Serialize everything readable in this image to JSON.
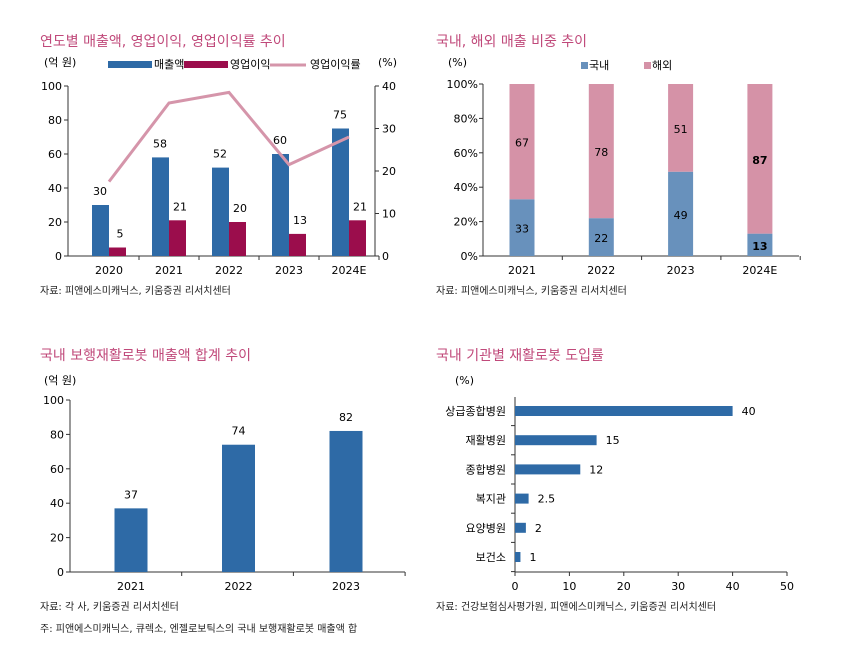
{
  "chart_data": [
    {
      "type": "bar+line",
      "title": "연도별 매출액, 영업이익, 영업이익률 추이",
      "ylabel": "(억 원)",
      "y2label": "(%)",
      "categories": [
        "2020",
        "2021",
        "2022",
        "2023",
        "2024E"
      ],
      "ylim": [
        0,
        100
      ],
      "y2lim": [
        0,
        40
      ],
      "yticks": [
        "0",
        "20",
        "40",
        "60",
        "80",
        "100"
      ],
      "y2ticks": [
        "0",
        "10",
        "20",
        "30",
        "40"
      ],
      "series": [
        {
          "name": "매출액",
          "values": [
            30,
            58,
            52,
            60,
            75
          ],
          "color": "#2e6aa6"
        },
        {
          "name": "영업이익",
          "values": [
            5,
            21,
            20,
            13,
            21
          ],
          "color": "#9b0d4c"
        },
        {
          "name": "영업이익률",
          "values": [
            17.5,
            36,
            38.5,
            21.5,
            28
          ],
          "color": "#d595aa",
          "axis": "right",
          "type": "line"
        }
      ],
      "legend": "top",
      "source": "자료: 피앤에스미캐닉스, 키움증권 리서치센터"
    },
    {
      "type": "stacked-bar",
      "title": "국내, 해외 매출 비중 추이",
      "ylabel": "(%)",
      "categories": [
        "2021",
        "2022",
        "2023",
        "2024E"
      ],
      "ylim": [
        0,
        100
      ],
      "yticks": [
        "0%",
        "20%",
        "40%",
        "60%",
        "80%",
        "100%"
      ],
      "series": [
        {
          "name": "국내",
          "values": [
            33,
            22,
            49,
            13
          ],
          "color": "#6891bc"
        },
        {
          "name": "해외",
          "values": [
            67,
            78,
            51,
            87
          ],
          "color": "#d592a7"
        }
      ],
      "legend": "top",
      "source": "자료: 피앤에스미캐닉스, 키움증권 리서치센터"
    },
    {
      "type": "bar",
      "title": "국내 보행재활로봇 매출액 합계 추이",
      "ylabel": "(억 원)",
      "categories": [
        "2021",
        "2022",
        "2023"
      ],
      "values": [
        37,
        74,
        82
      ],
      "ylim": [
        0,
        100
      ],
      "yticks": [
        "0",
        "20",
        "40",
        "60",
        "80",
        "100"
      ],
      "color": "#2e6aa6",
      "source": "자료: 각 사, 키움증권 리서치센터",
      "note": "주: 피앤에스미캐닉스, 큐렉소, 엔젤로보틱스의 국내 보행재활로봇 매출액 합"
    },
    {
      "type": "hbar",
      "title": "국내 기관별 재활로봇 도입률",
      "xlabel": "(%)",
      "categories": [
        "상급종합병원",
        "재활병원",
        "종합병원",
        "복지관",
        "요양병원",
        "보건소"
      ],
      "values": [
        40,
        15,
        12,
        2.5,
        2,
        1
      ],
      "labels": [
        "40",
        "15",
        "12",
        "2.5",
        "2",
        "1"
      ],
      "xlim": [
        0,
        50
      ],
      "xticks": [
        "0",
        "10",
        "20",
        "30",
        "40",
        "50"
      ],
      "color": "#2e6aa6",
      "source": "자료: 건강보험심사평가원, 피앤에스미캐닉스, 키움증권 리서치센터"
    }
  ]
}
